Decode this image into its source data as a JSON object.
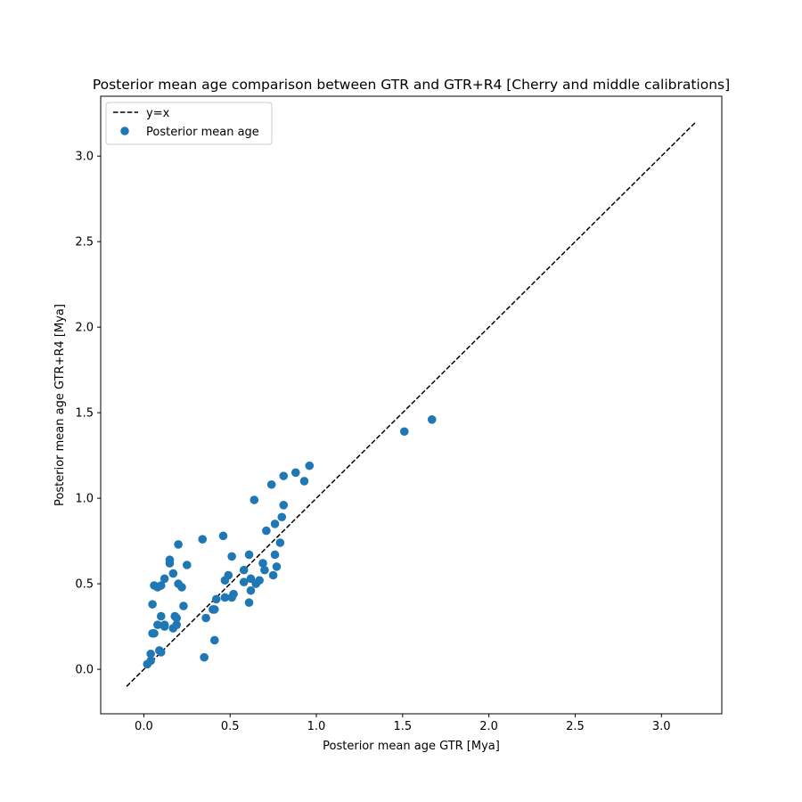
{
  "chart_data": {
    "type": "scatter",
    "title": "Posterior mean age comparison between GTR and GTR+R4 [Cherry and middle calibrations]",
    "xlabel": "Posterior mean age GTR [Mya]",
    "ylabel": "Posterior mean age GTR+R4 [Mya]",
    "xlim": [
      -0.25,
      3.35
    ],
    "ylim": [
      -0.26,
      3.35
    ],
    "x_ticks": [
      "0.0",
      "0.5",
      "1.0",
      "1.5",
      "2.0",
      "2.5",
      "3.0"
    ],
    "y_ticks": [
      "0.0",
      "0.5",
      "1.0",
      "1.5",
      "2.0",
      "2.5",
      "3.0"
    ],
    "grid": false,
    "legend": {
      "placement": "top-left",
      "entries": [
        "y=x",
        "Posterior mean age"
      ]
    },
    "reference_line": {
      "name": "y=x",
      "x": [
        -0.1,
        3.2
      ],
      "y": [
        -0.1,
        3.2
      ],
      "style": "dashed",
      "color": "#000000"
    },
    "series": [
      {
        "name": "Posterior mean age",
        "color": "#1f77b4",
        "points": [
          [
            0.02,
            0.03
          ],
          [
            0.04,
            0.05
          ],
          [
            0.04,
            0.09
          ],
          [
            0.05,
            0.21
          ],
          [
            0.06,
            0.21
          ],
          [
            0.05,
            0.38
          ],
          [
            0.06,
            0.49
          ],
          [
            0.08,
            0.48
          ],
          [
            0.1,
            0.49
          ],
          [
            0.08,
            0.26
          ],
          [
            0.09,
            0.11
          ],
          [
            0.1,
            0.1
          ],
          [
            0.1,
            0.31
          ],
          [
            0.12,
            0.26
          ],
          [
            0.12,
            0.25
          ],
          [
            0.12,
            0.53
          ],
          [
            0.15,
            0.62
          ],
          [
            0.15,
            0.64
          ],
          [
            0.17,
            0.56
          ],
          [
            0.17,
            0.24
          ],
          [
            0.18,
            0.31
          ],
          [
            0.19,
            0.26
          ],
          [
            0.19,
            0.3
          ],
          [
            0.2,
            0.73
          ],
          [
            0.2,
            0.5
          ],
          [
            0.22,
            0.48
          ],
          [
            0.23,
            0.37
          ],
          [
            0.25,
            0.61
          ],
          [
            0.34,
            0.76
          ],
          [
            0.35,
            0.07
          ],
          [
            0.36,
            0.3
          ],
          [
            0.4,
            0.35
          ],
          [
            0.41,
            0.35
          ],
          [
            0.41,
            0.17
          ],
          [
            0.42,
            0.41
          ],
          [
            0.46,
            0.78
          ],
          [
            0.47,
            0.52
          ],
          [
            0.47,
            0.42
          ],
          [
            0.49,
            0.55
          ],
          [
            0.51,
            0.66
          ],
          [
            0.51,
            0.42
          ],
          [
            0.52,
            0.44
          ],
          [
            0.58,
            0.58
          ],
          [
            0.58,
            0.51
          ],
          [
            0.61,
            0.39
          ],
          [
            0.61,
            0.67
          ],
          [
            0.62,
            0.46
          ],
          [
            0.62,
            0.53
          ],
          [
            0.64,
            0.99
          ],
          [
            0.65,
            0.5
          ],
          [
            0.67,
            0.52
          ],
          [
            0.69,
            0.62
          ],
          [
            0.7,
            0.58
          ],
          [
            0.71,
            0.81
          ],
          [
            0.74,
            1.08
          ],
          [
            0.75,
            0.55
          ],
          [
            0.76,
            0.85
          ],
          [
            0.76,
            0.67
          ],
          [
            0.77,
            0.6
          ],
          [
            0.79,
            0.74
          ],
          [
            0.8,
            0.89
          ],
          [
            0.81,
            0.96
          ],
          [
            0.81,
            1.13
          ],
          [
            0.88,
            1.15
          ],
          [
            0.93,
            1.1
          ],
          [
            0.96,
            1.19
          ],
          [
            1.51,
            1.39
          ],
          [
            1.67,
            1.46
          ]
        ]
      }
    ]
  }
}
